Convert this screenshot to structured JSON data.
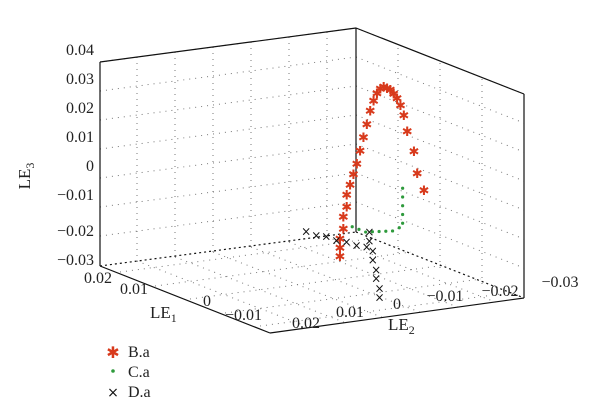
{
  "chart_data": {
    "type": "scatter",
    "projection": "3d",
    "title": "",
    "axes": {
      "le1": {
        "label": "LE",
        "subscript": "1",
        "ticks": [
          "0.02",
          "0.01",
          "0",
          "−0.01"
        ],
        "range": [
          -0.015,
          0.02
        ]
      },
      "le2": {
        "label": "LE",
        "subscript": "2",
        "ticks": [
          "0.02",
          "0.01",
          "0",
          "−0.01",
          "−0.02",
          "−0.03"
        ],
        "range": [
          -0.03,
          0.02
        ]
      },
      "le3": {
        "label": "LE",
        "subscript": "3",
        "ticks": [
          "0.04",
          "0.03",
          "0.02",
          "0.01",
          "0",
          "−0.01",
          "−0.02",
          "−0.03"
        ],
        "range": [
          -0.03,
          0.04
        ]
      }
    },
    "grid": true,
    "box": true,
    "legend_position": "bottom-left",
    "series": [
      {
        "name": "B.a",
        "marker": "asterisk",
        "color": "#d83a1c",
        "points": [
          [
            0.01,
            -0.019,
            0.022
          ],
          [
            0.01,
            -0.017,
            0.028
          ],
          [
            0.01,
            -0.016,
            0.033
          ],
          [
            0.01,
            -0.015,
            0.036
          ],
          [
            0.01,
            -0.014,
            0.038
          ],
          [
            0.01,
            -0.013,
            0.039
          ],
          [
            0.01,
            -0.012,
            0.04
          ],
          [
            0.01,
            -0.011,
            0.04
          ],
          [
            0.01,
            -0.01,
            0.04
          ],
          [
            0.01,
            -0.009,
            0.039
          ],
          [
            0.01,
            -0.008,
            0.037
          ],
          [
            0.01,
            -0.007,
            0.034
          ],
          [
            0.01,
            -0.006,
            0.03
          ],
          [
            0.01,
            -0.005,
            0.025
          ],
          [
            0.01,
            -0.004,
            0.02
          ],
          [
            0.01,
            -0.003,
            0.015
          ],
          [
            0.01,
            -0.002,
            0.01
          ],
          [
            0.01,
            -0.001,
            0.006
          ],
          [
            0.01,
            0.0,
            0.002
          ],
          [
            0.01,
            0.001,
            -0.002
          ],
          [
            0.01,
            0.001,
            -0.006
          ],
          [
            0.01,
            0.002,
            -0.01
          ],
          [
            0.01,
            0.002,
            -0.014
          ],
          [
            0.01,
            0.003,
            -0.018
          ],
          [
            0.01,
            0.003,
            -0.021
          ],
          [
            0.01,
            0.003,
            -0.024
          ],
          [
            0.01,
            -0.02,
            0.015
          ],
          [
            0.01,
            -0.022,
            0.01
          ]
        ]
      },
      {
        "name": "C.a",
        "marker": "dot",
        "color": "#2e9a3c",
        "points": [
          [
            0.008,
            -0.02,
            0.011
          ],
          [
            0.008,
            -0.02,
            0.008
          ],
          [
            0.008,
            -0.02,
            0.005
          ],
          [
            0.008,
            -0.02,
            0.002
          ],
          [
            0.008,
            -0.02,
            -0.001
          ],
          [
            0.008,
            -0.019,
            -0.003
          ],
          [
            0.008,
            -0.017,
            -0.005
          ],
          [
            0.008,
            -0.015,
            -0.006
          ],
          [
            0.008,
            -0.013,
            -0.007
          ],
          [
            0.008,
            -0.011,
            -0.008
          ],
          [
            0.008,
            -0.009,
            -0.009
          ],
          [
            0.008,
            -0.007,
            -0.009
          ],
          [
            0.008,
            -0.005,
            -0.009
          ]
        ]
      },
      {
        "name": "D.a",
        "marker": "cross",
        "color": "#111111",
        "points": [
          [
            0.003,
            -0.024,
            -0.021
          ],
          [
            0.003,
            -0.024,
            -0.018
          ],
          [
            0.003,
            -0.023,
            -0.015
          ],
          [
            0.003,
            -0.023,
            -0.012
          ],
          [
            0.003,
            -0.022,
            -0.009
          ],
          [
            0.003,
            -0.022,
            -0.006
          ],
          [
            0.003,
            -0.021,
            -0.003
          ],
          [
            0.003,
            -0.021,
            0.0
          ],
          [
            0.004,
            -0.018,
            -0.007
          ],
          [
            0.004,
            -0.015,
            -0.008
          ],
          [
            0.004,
            -0.012,
            -0.008
          ],
          [
            0.004,
            -0.009,
            -0.009
          ],
          [
            0.004,
            -0.006,
            -0.009
          ],
          [
            0.004,
            -0.003,
            -0.01
          ],
          [
            0.004,
            0.0,
            -0.01
          ]
        ]
      }
    ]
  }
}
